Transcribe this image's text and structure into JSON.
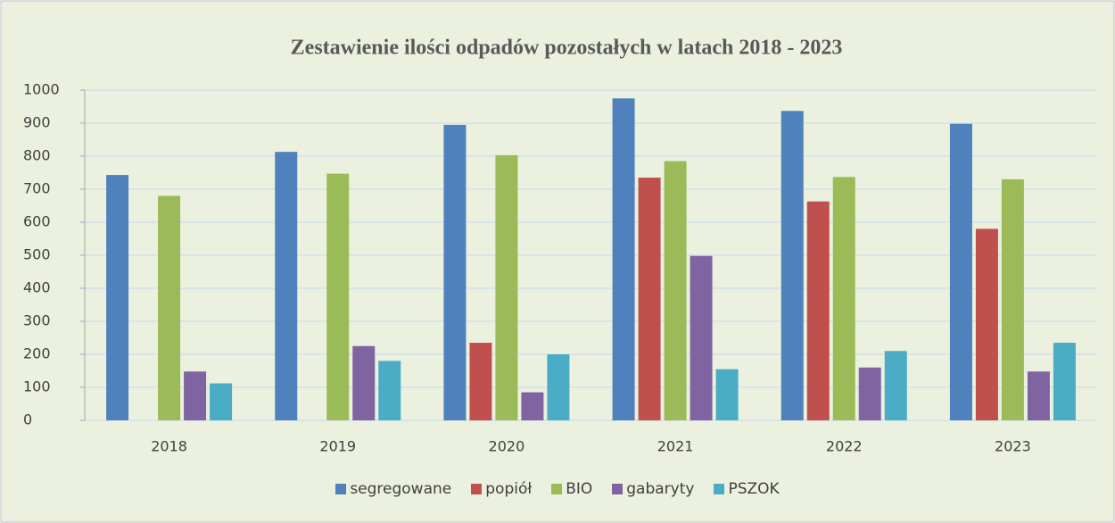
{
  "chart_data": {
    "type": "bar",
    "title": "Zestawienie ilości odpadów pozostałych w latach 2018 - 2023",
    "categories": [
      "2018",
      "2019",
      "2020",
      "2021",
      "2022",
      "2023"
    ],
    "series": [
      {
        "name": "segregowane",
        "color": "#4f81bd",
        "values": [
          743,
          813,
          895,
          975,
          937,
          898
        ]
      },
      {
        "name": "popiół",
        "color": "#c0504d",
        "values": [
          null,
          null,
          235,
          735,
          663,
          580
        ]
      },
      {
        "name": "BIO",
        "color": "#9bbb59",
        "values": [
          680,
          747,
          803,
          785,
          737,
          730
        ]
      },
      {
        "name": "gabaryty",
        "color": "#8064a2",
        "values": [
          148,
          225,
          85,
          498,
          160,
          148
        ]
      },
      {
        "name": "PSZOK",
        "color": "#4bacc6",
        "values": [
          112,
          180,
          200,
          155,
          210,
          235
        ]
      }
    ],
    "ylim": [
      0,
      1000
    ],
    "yticks": [
      0,
      100,
      200,
      300,
      400,
      500,
      600,
      700,
      800,
      900,
      1000
    ],
    "grid": true
  }
}
